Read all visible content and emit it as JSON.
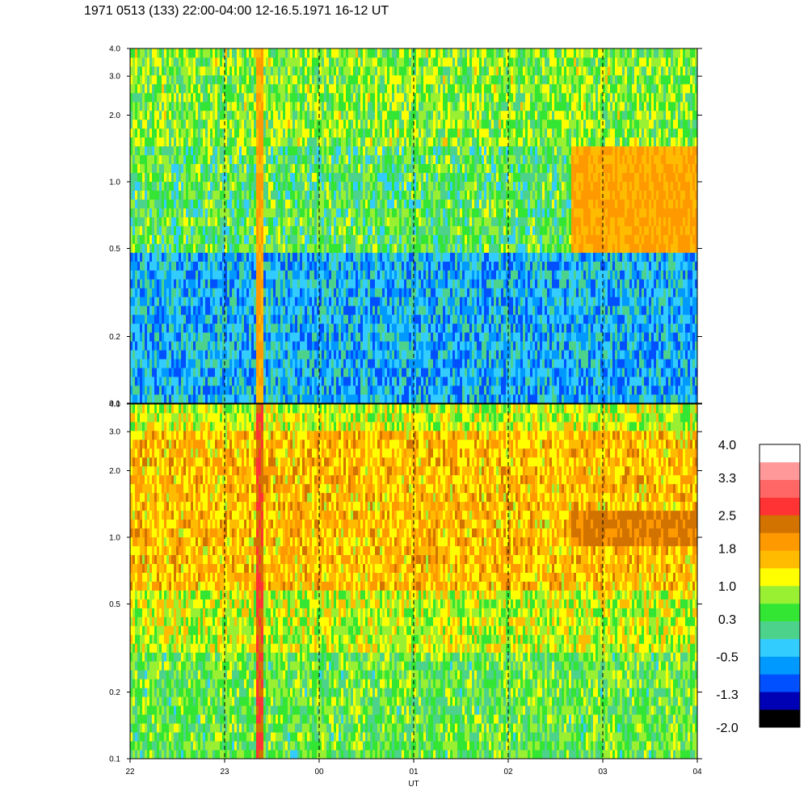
{
  "title": "1971 0513 (133) 22:00-04:00 12-16.5.1971  16-12 UT",
  "chart_data": [
    {
      "type": "heatmap",
      "panel": "top",
      "x_tick_labels": [
        "22",
        "23",
        "00",
        "01",
        "02",
        "03",
        "04"
      ],
      "y_tick_labels": [
        "0.1",
        "0.2",
        "0.5",
        "1.0",
        "2.0",
        "3.0",
        "4.0"
      ],
      "y_ticks": [
        0.1,
        0.2,
        0.5,
        1.0,
        2.0,
        3.0,
        4.0
      ],
      "y_scale": "log",
      "ylim": [
        0.1,
        4.0
      ],
      "grid": "dashed vertical lines at each hour",
      "dominant_level": -0.5,
      "features": [
        {
          "time": "23:20-23:25",
          "level": 1.8
        },
        {
          "time": "02:40-04:00",
          "y_range": [
            0.5,
            1.5
          ],
          "level": 1.8
        }
      ]
    },
    {
      "type": "heatmap",
      "panel": "bottom",
      "x_tick_labels": [
        "22",
        "23",
        "00",
        "01",
        "02",
        "03",
        "04"
      ],
      "y_tick_labels": [
        "0.1",
        "0.2",
        "0.5",
        "1.0",
        "2.0",
        "3.0",
        "4.0"
      ],
      "y_ticks": [
        0.1,
        0.2,
        0.5,
        1.0,
        2.0,
        3.0,
        4.0
      ],
      "y_scale": "log",
      "ylim": [
        0.1,
        4.0
      ],
      "xlabel": "UT",
      "grid": "dashed vertical lines at each hour",
      "dominant_level": 1.0,
      "features": [
        {
          "time": "23:20-23:25",
          "level": 2.5
        },
        {
          "time": "02:40-04:00",
          "y_range": [
            0.9,
            1.3
          ],
          "level": 2.2
        }
      ]
    }
  ],
  "colorbar": {
    "colors": [
      "#000000",
      "#0000b4",
      "#0050ff",
      "#0099ff",
      "#33ccff",
      "#4dd28c",
      "#33e633",
      "#99f033",
      "#ffff00",
      "#ffbb00",
      "#ff9900",
      "#d27300",
      "#ff3333",
      "#ff6666",
      "#ff9999",
      "#ffffff"
    ],
    "tick_labels": [
      "-2.0",
      "-1.3",
      "-0.5",
      "0.3",
      "1.0",
      "1.8",
      "2.5",
      "3.3",
      "4.0"
    ],
    "levels": [
      -2.0,
      -1.3,
      -0.5,
      0.3,
      1.0,
      1.8,
      2.5,
      3.3,
      4.0
    ]
  }
}
